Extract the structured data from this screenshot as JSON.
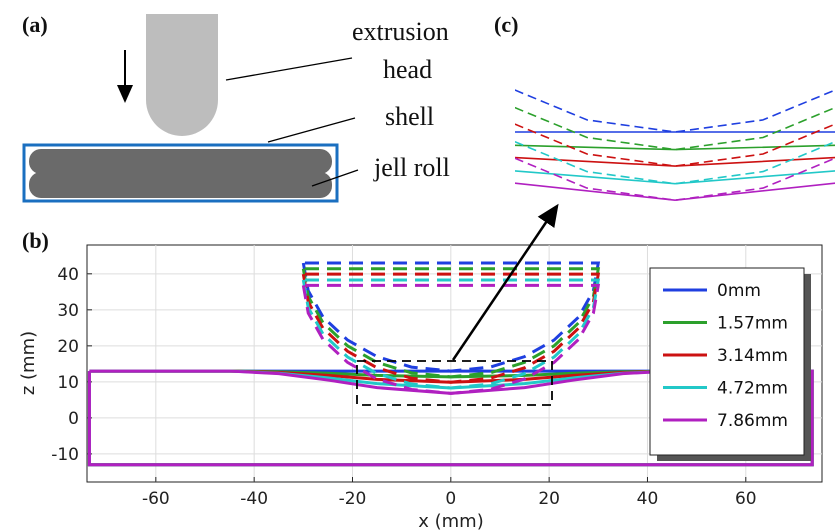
{
  "panel_a": {
    "label": "(a)",
    "head_label_1": "extrusion",
    "head_label_2": "head",
    "shell_label": "shell",
    "roll_label": "jell roll"
  },
  "panel_c": {
    "label": "(c)"
  },
  "chart_data": {
    "type": "line",
    "panel_label": "(b)",
    "xlabel": "x  (mm)",
    "ylabel": "z  (mm)",
    "xlim": [
      -74,
      75.5
    ],
    "ylim": [
      -17.8,
      48
    ],
    "xticks": [
      -60,
      -40,
      -20,
      0,
      20,
      40,
      60
    ],
    "yticks": [
      -10,
      0,
      10,
      20,
      30,
      40
    ],
    "grid": true,
    "legend": "right",
    "shell_x": [
      -73.5,
      -45,
      -35,
      -25,
      -15,
      0,
      15,
      25,
      35,
      45,
      73.5,
      73.5,
      -73.5,
      -73.5
    ],
    "head_x": [
      -30,
      -29,
      -26,
      -21,
      -15,
      -8,
      0,
      8,
      15,
      21,
      26,
      29,
      30,
      -30
    ],
    "series": [
      {
        "name": "0mm",
        "color": "#1f3fe0",
        "shell_z": [
          13,
          13,
          13,
          13,
          13,
          13,
          13,
          13,
          13,
          13,
          13,
          -13,
          -13,
          13
        ],
        "head_z": [
          43,
          35.3,
          28,
          21.6,
          17,
          14.1,
          13,
          14.1,
          17,
          21.6,
          28,
          35.3,
          43,
          43
        ]
      },
      {
        "name": "1.57mm",
        "color": "#2ca02c",
        "shell_z": [
          13,
          13,
          12.8,
          12.4,
          11.8,
          11.4,
          11.8,
          12.4,
          12.8,
          13,
          13,
          -13,
          -13,
          13
        ],
        "head_z": [
          41.4,
          33.7,
          26.4,
          20,
          15.4,
          12.5,
          11.4,
          12.5,
          15.4,
          20,
          26.4,
          33.7,
          41.4,
          41.4
        ]
      },
      {
        "name": "3.14mm",
        "color": "#cc1111",
        "shell_z": [
          13,
          13,
          12.6,
          11.8,
          10.7,
          9.9,
          10.7,
          11.8,
          12.6,
          13,
          13,
          -13,
          -13,
          13
        ],
        "head_z": [
          39.9,
          32.2,
          24.9,
          18.5,
          13.9,
          11,
          9.9,
          11,
          13.9,
          18.5,
          24.9,
          32.2,
          39.9,
          39.9
        ]
      },
      {
        "name": "4.72mm",
        "color": "#22c8c8",
        "shell_z": [
          13,
          13,
          12.4,
          11.1,
          9.5,
          8.3,
          9.5,
          11.1,
          12.4,
          13,
          13,
          -13,
          -13,
          13
        ],
        "head_z": [
          38.3,
          30.6,
          23.3,
          16.9,
          12.3,
          9.4,
          8.3,
          9.4,
          12.3,
          16.9,
          23.3,
          30.6,
          38.3,
          38.3
        ]
      },
      {
        "name": "7.86mm",
        "color": "#b020c0",
        "shell_z": [
          13,
          13,
          12.3,
          10.5,
          8.4,
          6.8,
          8.4,
          10.5,
          12.3,
          13,
          13,
          -13,
          -13,
          13
        ],
        "head_z": [
          36.8,
          29.1,
          21.8,
          15.4,
          10.8,
          7.9,
          6.8,
          7.9,
          10.8,
          15.4,
          21.8,
          29.1,
          36.8,
          36.8
        ]
      }
    ]
  }
}
